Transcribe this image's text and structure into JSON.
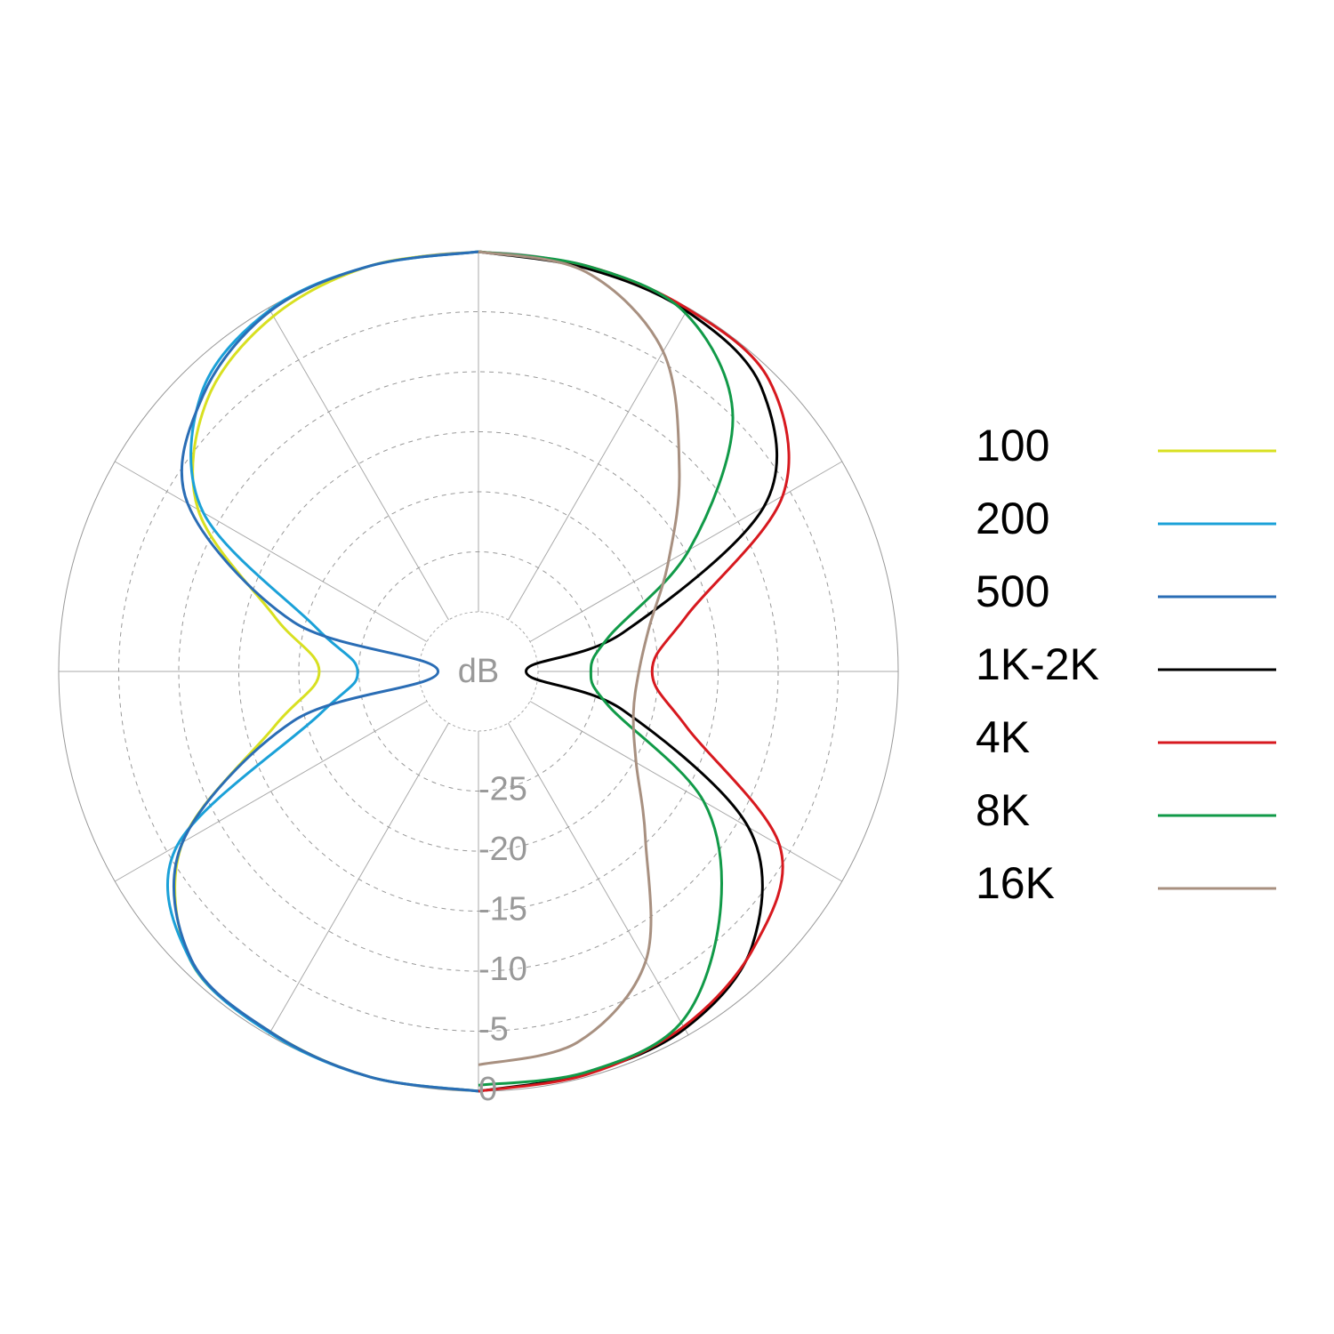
{
  "chart_data": {
    "type": "polar",
    "radial_label": "dB",
    "rlim": [
      -30,
      0
    ],
    "rticks": [
      -25,
      -20,
      -15,
      -10,
      -5,
      0
    ],
    "grid": true,
    "series": [
      {
        "name": "100",
        "color": "#d8e021",
        "theta": [
          180,
          195,
          210,
          225,
          240,
          255,
          270,
          285,
          300,
          315,
          330,
          345,
          360
        ],
        "values": [
          0,
          0,
          -0.3,
          -1,
          -6.5,
          -17.4,
          -21.7,
          -17.4,
          -8,
          -3,
          -0.8,
          0,
          0
        ]
      },
      {
        "name": "200",
        "color": "#1ba1d8",
        "theta": [
          180,
          195,
          210,
          225,
          240,
          255,
          270,
          285,
          300,
          315,
          330,
          345,
          360
        ],
        "values": [
          0,
          0,
          -0.2,
          -1,
          -6,
          -21.3,
          -24.9,
          -21,
          -8.5,
          -2.3,
          -0.2,
          0,
          0
        ]
      },
      {
        "name": "500",
        "color": "#2a6db5",
        "theta": [
          180,
          195,
          210,
          225,
          240,
          255,
          270,
          285,
          300,
          315,
          330,
          345,
          360
        ],
        "values": [
          0,
          0,
          -0.3,
          -1.1,
          -6.5,
          -19,
          -31.6,
          -19,
          -7,
          -2.5,
          -0.3,
          0,
          0
        ]
      },
      {
        "name": "1K-2K",
        "color": "#000000",
        "theta": [
          0,
          15,
          30,
          45,
          60,
          75,
          90,
          105,
          120,
          135,
          150,
          165,
          180
        ],
        "values": [
          0,
          -0.2,
          -0.3,
          -1.6,
          -7.5,
          -22.5,
          -31,
          -22.5,
          -9,
          -2.7,
          -0.6,
          -0.3,
          0
        ]
      },
      {
        "name": "4K",
        "color": "#d7191f",
        "theta": [
          0,
          15,
          30,
          45,
          60,
          75,
          90,
          105,
          120,
          135,
          150,
          165,
          180
        ],
        "values": [
          0,
          0,
          -0.1,
          -0.7,
          -5.7,
          -17,
          -20.5,
          -17,
          -6,
          -2.5,
          -0.8,
          -0.2,
          0
        ]
      },
      {
        "name": "8K",
        "color": "#119a48",
        "theta": [
          0,
          15,
          30,
          45,
          60,
          75,
          90,
          105,
          120,
          135,
          150,
          165,
          180
        ],
        "values": [
          0,
          0,
          -0.5,
          -5,
          -14.7,
          -23.7,
          -25.6,
          -23.7,
          -13.3,
          -6.5,
          -1.2,
          -0.4,
          -0.5
        ]
      },
      {
        "name": "16K",
        "color": "#a89080",
        "theta": [
          0,
          15,
          30,
          45,
          60,
          75,
          90,
          105,
          120,
          135,
          150,
          165,
          180
        ],
        "values": [
          0,
          -0.5,
          -4.2,
          -11.3,
          -16.7,
          -20.2,
          -21.6,
          -21.6,
          -19.8,
          -15.3,
          -7.1,
          -3,
          -2.2
        ]
      }
    ]
  }
}
